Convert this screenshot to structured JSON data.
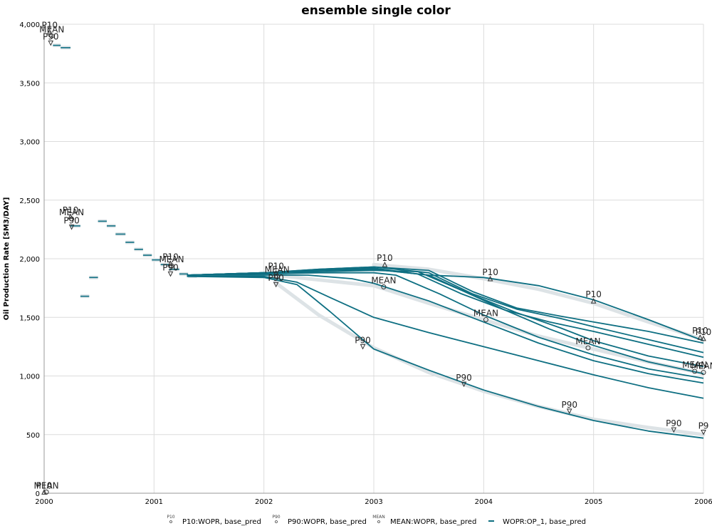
{
  "chart_data": {
    "type": "line",
    "title": "ensemble single color",
    "xlabel": "",
    "ylabel": "Oil Production Rate [SM3/DAY]",
    "xlim": [
      2000,
      2006
    ],
    "ylim": [
      0,
      4000
    ],
    "x_ticks": [
      "2000",
      "2001",
      "2002",
      "2003",
      "2004",
      "2005",
      "2006"
    ],
    "y_ticks": [
      {
        "value": 0,
        "label": "0"
      },
      {
        "value": 500,
        "label": "500"
      },
      {
        "value": 1000,
        "label": "1,000"
      },
      {
        "value": 1500,
        "label": "1,500"
      },
      {
        "value": 2000,
        "label": "2,000"
      },
      {
        "value": 2500,
        "label": "2,500"
      },
      {
        "value": 3000,
        "label": "3,000"
      },
      {
        "value": 3500,
        "label": "3,500"
      },
      {
        "value": 4000,
        "label": "4,000"
      }
    ],
    "grid": true,
    "legend_position": "bottom",
    "colors": {
      "ensemble": "#0e6f82",
      "stat": "#dde3e6"
    },
    "history": {
      "segments": [
        [
          2000.08,
          2000.15,
          3820
        ],
        [
          2000.15,
          2000.24,
          3800
        ],
        [
          2000.24,
          2000.33,
          2280
        ],
        [
          2000.33,
          2000.41,
          1680
        ],
        [
          2000.41,
          2000.49,
          1840
        ],
        [
          2000.49,
          2000.57,
          2320
        ],
        [
          2000.57,
          2000.65,
          2280
        ],
        [
          2000.65,
          2000.74,
          2210
        ],
        [
          2000.74,
          2000.82,
          2140
        ],
        [
          2000.82,
          2000.9,
          2080
        ],
        [
          2000.9,
          2000.98,
          2030
        ],
        [
          2000.98,
          2001.06,
          1990
        ],
        [
          2001.06,
          2001.14,
          1950
        ],
        [
          2001.14,
          2001.23,
          1910
        ],
        [
          2001.23,
          2001.31,
          1870
        ],
        [
          2001.31,
          2001.39,
          1850
        ]
      ]
    },
    "series": [
      {
        "x": [
          2001.3,
          2002.0,
          2002.3,
          2002.6,
          2003.0,
          2003.5,
          2004.0,
          2004.5,
          2005.0,
          2005.5,
          2006.0
        ],
        "values": [
          1850,
          1840,
          1780,
          1550,
          1230,
          1050,
          880,
          740,
          620,
          530,
          470
        ]
      },
      {
        "x": [
          2001.3,
          2002.0,
          2002.3,
          2002.6,
          2003.0,
          2003.5,
          2004.0,
          2004.5,
          2005.0,
          2005.5,
          2006.0
        ],
        "values": [
          1850,
          1850,
          1800,
          1670,
          1500,
          1370,
          1250,
          1130,
          1010,
          900,
          810
        ]
      },
      {
        "x": [
          2001.3,
          2002.0,
          2002.4,
          2002.8,
          2003.0,
          2003.5,
          2004.0,
          2004.5,
          2005.0,
          2005.5,
          2006.0
        ],
        "values": [
          1860,
          1860,
          1860,
          1830,
          1790,
          1640,
          1460,
          1280,
          1130,
          1020,
          940
        ]
      },
      {
        "x": [
          2001.3,
          2002.0,
          2002.5,
          2003.0,
          2003.2,
          2003.6,
          2004.0,
          2004.5,
          2005.0,
          2005.5,
          2006.0
        ],
        "values": [
          1860,
          1870,
          1880,
          1880,
          1860,
          1700,
          1520,
          1330,
          1180,
          1060,
          980
        ]
      },
      {
        "x": [
          2001.3,
          2002.0,
          2002.5,
          2003.0,
          2003.4,
          2003.8,
          2004.2,
          2004.6,
          2005.0,
          2005.5,
          2006.0
        ],
        "values": [
          1860,
          1880,
          1890,
          1900,
          1890,
          1730,
          1560,
          1400,
          1260,
          1120,
          1020
        ]
      },
      {
        "x": [
          2001.3,
          2002.0,
          2002.5,
          2003.0,
          2003.5,
          2003.9,
          2004.3,
          2004.7,
          2005.0,
          2005.5,
          2006.0
        ],
        "values": [
          1860,
          1880,
          1900,
          1910,
          1860,
          1690,
          1540,
          1410,
          1300,
          1170,
          1080
        ]
      },
      {
        "x": [
          2001.3,
          2002.0,
          2002.5,
          2003.0,
          2003.4,
          2003.8,
          2004.2,
          2004.6,
          2005.0,
          2005.5,
          2006.0
        ],
        "values": [
          1860,
          1880,
          1900,
          1920,
          1870,
          1700,
          1560,
          1460,
          1380,
          1270,
          1160
        ]
      },
      {
        "x": [
          2001.3,
          2002.0,
          2002.5,
          2003.0,
          2003.5,
          2003.9,
          2004.3,
          2004.7,
          2005.0,
          2005.5,
          2006.0
        ],
        "values": [
          1860,
          1880,
          1910,
          1930,
          1880,
          1700,
          1570,
          1490,
          1420,
          1310,
          1200
        ]
      },
      {
        "x": [
          2001.3,
          2002.0,
          2002.5,
          2003.0,
          2003.5,
          2003.9,
          2004.3,
          2004.7,
          2005.0,
          2005.5,
          2006.0
        ],
        "values": [
          1860,
          1880,
          1910,
          1930,
          1900,
          1720,
          1580,
          1510,
          1460,
          1380,
          1280
        ]
      },
      {
        "x": [
          2001.3,
          2002.0,
          2002.5,
          2003.0,
          2003.5,
          2004.0,
          2004.5,
          2005.0,
          2005.5,
          2006.0
        ],
        "values": [
          1860,
          1880,
          1900,
          1910,
          1860,
          1840,
          1770,
          1650,
          1480,
          1300
        ]
      }
    ],
    "statistics": [
      {
        "name": "P10",
        "x": [
          2003.0,
          2003.5,
          2004.0,
          2004.5,
          2005.0,
          2005.5,
          2006.0
        ],
        "values": [
          1950,
          1910,
          1830,
          1740,
          1620,
          1460,
          1310
        ]
      },
      {
        "name": "MEAN",
        "x": [
          2002.1,
          2002.5,
          2003.0,
          2003.5,
          2004.0,
          2004.5,
          2005.0,
          2005.5,
          2006.0
        ],
        "values": [
          1860,
          1820,
          1770,
          1620,
          1480,
          1340,
          1230,
          1120,
          1020
        ]
      },
      {
        "name": "P90",
        "x": [
          2002.1,
          2002.5,
          2003.0,
          2003.5,
          2004.0,
          2004.5,
          2005.0,
          2005.5,
          2006.0
        ],
        "values": [
          1800,
          1520,
          1240,
          1030,
          870,
          740,
          630,
          560,
          500
        ]
      }
    ],
    "annotations": [
      {
        "label": "P10",
        "x": 2000.05,
        "y": 3935
      },
      {
        "label": "MEAN",
        "x": 2000.07,
        "y": 3900
      },
      {
        "label": "P90",
        "x": 2000.06,
        "y": 3840
      },
      {
        "label": "P10",
        "x": 2000.24,
        "y": 2360
      },
      {
        "label": "MEAN",
        "x": 2000.25,
        "y": 2340
      },
      {
        "label": "P90",
        "x": 2000.25,
        "y": 2270
      },
      {
        "label": "P10",
        "x": 2001.15,
        "y": 1960
      },
      {
        "label": "MEAN",
        "x": 2001.16,
        "y": 1940
      },
      {
        "label": "P90",
        "x": 2001.15,
        "y": 1870
      },
      {
        "label": "P10",
        "x": 2002.11,
        "y": 1880
      },
      {
        "label": "MEAN",
        "x": 2002.12,
        "y": 1850
      },
      {
        "label": "P90",
        "x": 2002.11,
        "y": 1780
      },
      {
        "label": "P10",
        "x": 2003.1,
        "y": 1950
      },
      {
        "label": "MEAN",
        "x": 2003.09,
        "y": 1760
      },
      {
        "label": "P90",
        "x": 2002.9,
        "y": 1250
      },
      {
        "label": "P10",
        "x": 2004.06,
        "y": 1830
      },
      {
        "label": "MEAN",
        "x": 2004.02,
        "y": 1480
      },
      {
        "label": "P90",
        "x": 2003.82,
        "y": 930
      },
      {
        "label": "P10",
        "x": 2005.0,
        "y": 1640
      },
      {
        "label": "MEAN",
        "x": 2004.95,
        "y": 1240
      },
      {
        "label": "P90",
        "x": 2004.78,
        "y": 700
      },
      {
        "label": "P10",
        "x": 2005.97,
        "y": 1330
      },
      {
        "label": "MEAN",
        "x": 2005.92,
        "y": 1040
      },
      {
        "label": "P90",
        "x": 2005.73,
        "y": 540
      },
      {
        "label": "P10",
        "x": 2006.0,
        "y": 1320
      },
      {
        "label": "MEAN",
        "x": 2006.0,
        "y": 1030
      },
      {
        "label": "P9",
        "x": 2006.0,
        "y": 520
      },
      {
        "label": "P10",
        "x": 2000.0,
        "y": 10
      },
      {
        "label": "MEAN",
        "x": 2000.02,
        "y": 10
      }
    ],
    "legend": [
      {
        "symbol": "P10",
        "label": "P10:WOPR, base_pred"
      },
      {
        "symbol": "P90",
        "label": "P90:WOPR, base_pred"
      },
      {
        "symbol": "MEAN",
        "label": "MEAN:WOPR, base_pred"
      },
      {
        "symbol": "line",
        "label": "WOPR:OP_1, base_pred"
      }
    ]
  }
}
